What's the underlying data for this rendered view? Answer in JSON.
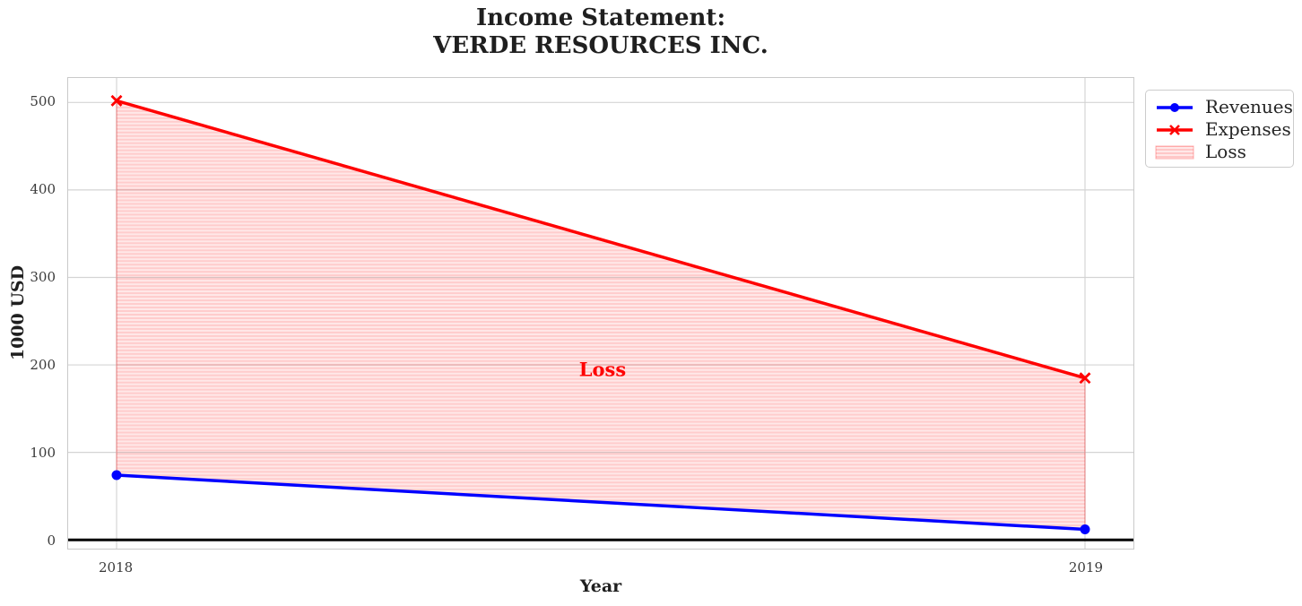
{
  "title": {
    "line1": "Income Statement:",
    "line2": "VERDE RESOURCES INC."
  },
  "axes": {
    "xlabel": "Year",
    "ylabel": "1000 USD"
  },
  "annotation": {
    "loss_label": "Loss"
  },
  "legend": {
    "position": "upper right, outside axes",
    "items": [
      {
        "label": "Revenues",
        "marker": "circle",
        "color": "#0000ff"
      },
      {
        "label": "Expenses",
        "marker": "x",
        "color": "#ff0000"
      },
      {
        "label": "Loss",
        "swatch": "red horizontal hatch patch"
      }
    ]
  },
  "colors": {
    "revenues_line": "#0000ff",
    "expenses_line": "#ff0000",
    "loss_fill_base": "rgba(255,0,0,0.09)",
    "loss_hatch_line": "rgba(255,0,0,0.12)",
    "loss_edge": "rgba(255,0,0,0.35)",
    "annotation_text": "#ff0000",
    "grid": "#d4d4d4",
    "spine": "#c9c9c9",
    "zero_line": "#000000",
    "text": "#262626"
  },
  "chart_data": {
    "type": "line",
    "title": "Income Statement: VERDE RESOURCES INC.",
    "xlabel": "Year",
    "ylabel": "1000 USD",
    "x": [
      2018,
      2019
    ],
    "series": [
      {
        "name": "Revenues",
        "values": [
          74,
          12
        ],
        "color": "#0000ff",
        "marker": "circle"
      },
      {
        "name": "Expenses",
        "values": [
          502,
          185
        ],
        "color": "#ff0000",
        "marker": "x"
      }
    ],
    "fill_between": {
      "label": "Loss",
      "upper": "Expenses",
      "lower": "Revenues",
      "style": "horizontal red hatch, translucent red fill"
    },
    "xticks": [
      2018,
      2019
    ],
    "yticks": [
      0,
      100,
      200,
      300,
      400,
      500
    ],
    "xlim": [
      2017.95,
      2019.05
    ],
    "ylim": [
      -10,
      528
    ],
    "grid": true,
    "zero_line": true,
    "legend_position": "upper right"
  }
}
